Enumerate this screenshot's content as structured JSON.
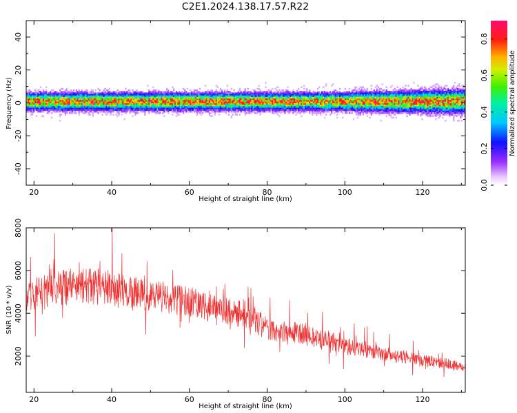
{
  "page_title": "C2E1.2024.138.17.57.R22",
  "chart_data": [
    {
      "type": "heatmap",
      "xlabel": "Height of straight line (km)",
      "ylabel": "Frequency (Hz)",
      "xlim": [
        18,
        131
      ],
      "ylim": [
        -50,
        50
      ],
      "xticks": [
        20,
        40,
        60,
        80,
        100,
        120
      ],
      "yticks": [
        -40,
        -20,
        0,
        20,
        40
      ],
      "band_center_hz": 0.8,
      "band_halfwidth_hz": 9,
      "colorbar": {
        "label": "Normalized spectral amplitude",
        "range": [
          0,
          0.9
        ],
        "ticks": [
          0.0,
          0.2,
          0.4,
          0.6,
          0.8
        ]
      }
    },
    {
      "type": "line",
      "xlabel": "Height of straight line (km)",
      "ylabel": "SNR (10 * v/v)",
      "xlim": [
        18,
        131
      ],
      "ylim": [
        300,
        8000
      ],
      "xticks": [
        20,
        40,
        60,
        80,
        100,
        120
      ],
      "yticks": [
        2000,
        4000,
        6000,
        8000
      ],
      "color": "#f03030",
      "trend": [
        {
          "x": 18,
          "y": 4800
        },
        {
          "x": 25,
          "y": 5200
        },
        {
          "x": 35,
          "y": 5300
        },
        {
          "x": 45,
          "y": 5000
        },
        {
          "x": 55,
          "y": 4700
        },
        {
          "x": 65,
          "y": 4300
        },
        {
          "x": 75,
          "y": 3900
        },
        {
          "x": 80,
          "y": 3300
        },
        {
          "x": 90,
          "y": 3000
        },
        {
          "x": 100,
          "y": 2500
        },
        {
          "x": 110,
          "y": 2100
        },
        {
          "x": 120,
          "y": 1800
        },
        {
          "x": 131,
          "y": 1500
        }
      ]
    }
  ]
}
